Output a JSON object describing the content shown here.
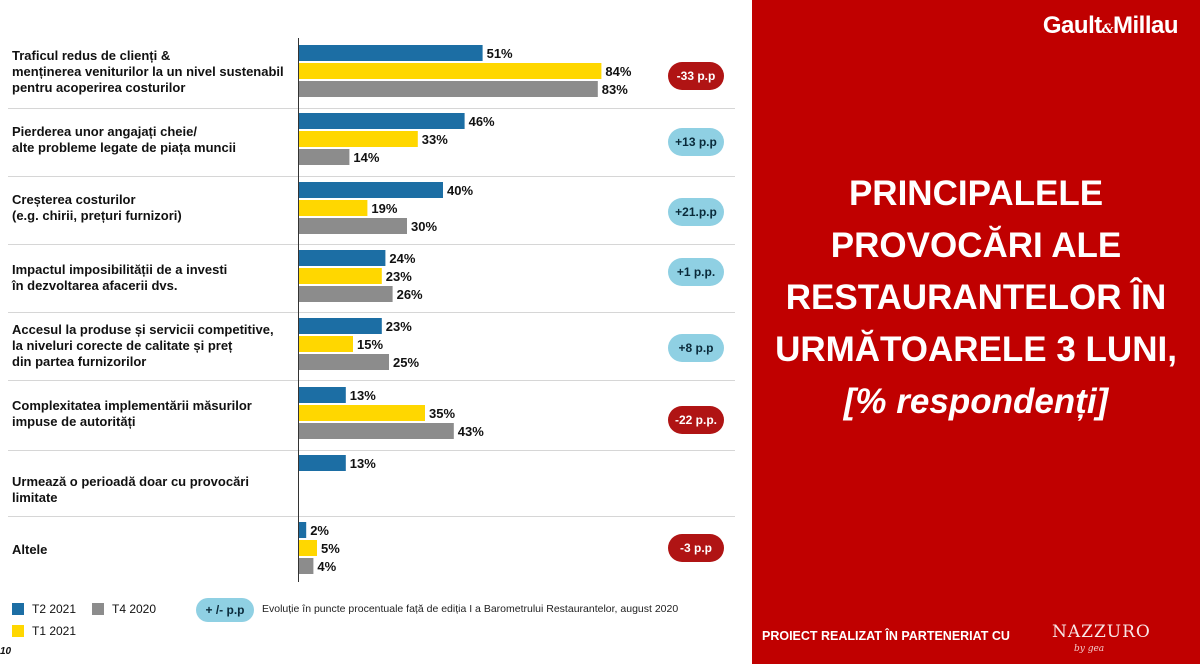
{
  "chart_data": {
    "type": "bar",
    "orientation": "horizontal",
    "title": "PRINCIPALELE PROVOCĂRI ALE RESTAURANTELOR ÎN URMĂTOARELE 3 LUNI,",
    "subtitle": "[% respondenți]",
    "xlim": [
      0,
      100
    ],
    "value_suffix": "%",
    "series": [
      {
        "name": "T2 2021",
        "color": "#1c6ea4",
        "values": [
          51,
          46,
          40,
          24,
          23,
          13,
          13,
          2
        ]
      },
      {
        "name": "T1 2021",
        "color": "#ffd700",
        "values": [
          84,
          33,
          19,
          23,
          15,
          35,
          null,
          5
        ]
      },
      {
        "name": "T4 2020",
        "color": "#8c8c8c",
        "values": [
          83,
          14,
          30,
          26,
          25,
          43,
          null,
          4
        ]
      }
    ],
    "categories": [
      {
        "label": "Traficul redus de clienți &\nmenținerea veniturilor la un nivel sustenabil\npentru acoperirea costurilor",
        "change": "-33 p.p",
        "trend": "neg"
      },
      {
        "label": "Pierderea unor angajați cheie/\nalte probleme legate de piața muncii",
        "change": "+13 p.p",
        "trend": "pos"
      },
      {
        "label": "Creșterea costurilor\n(e.g. chirii, prețuri furnizori)",
        "change": "+21.p.p",
        "trend": "pos"
      },
      {
        "label": "Impactul imposibilității de a investi\nîn dezvoltarea afacerii dvs.",
        "change": "+1 p.p.",
        "trend": "pos"
      },
      {
        "label": "Accesul la produse și servicii competitive,\nla niveluri corecte de calitate și preț\ndin partea furnizorilor",
        "change": "+8 p.p",
        "trend": "pos"
      },
      {
        "label": "Complexitatea implementării măsurilor\nimpuse de autorități",
        "change": "-22 p.p.",
        "trend": "neg"
      },
      {
        "label": "Urmează o perioadă doar cu provocări limitate",
        "change": null,
        "trend": null
      },
      {
        "label": "Altele",
        "change": "-3 p.p",
        "trend": "neg"
      }
    ],
    "legend": {
      "items": [
        {
          "name": "T2 2021",
          "color": "#1c6ea4"
        },
        {
          "name": "T4 2020",
          "color": "#8c8c8c"
        },
        {
          "name": "T1 2021",
          "color": "#ffd700"
        }
      ],
      "change_badge": "+ /- p.p",
      "change_note": "Evoluție în puncte procentuale față de ediția I a Barometrului Restaurantelor, august 2020"
    }
  },
  "side_panel": {
    "logo_left": "Gault",
    "logo_amp": "&",
    "logo_right": "Millau",
    "title": "PRINCIPALELE PROVOCĂRI ALE RESTAURANTELOR ÎN URMĂTOARELE 3 LUNI,",
    "subtitle": "[% respondenți]",
    "partner_text": "PROIECT REALIZAT ÎN PARTENERIAT CU",
    "partner_logo": "NAZZURO",
    "partner_logo_sub": "by gea"
  },
  "page_number": "10",
  "colors": {
    "panel_red": "#c00000",
    "badge_neg": "#b01414",
    "badge_pos": "#8fd0e3"
  }
}
